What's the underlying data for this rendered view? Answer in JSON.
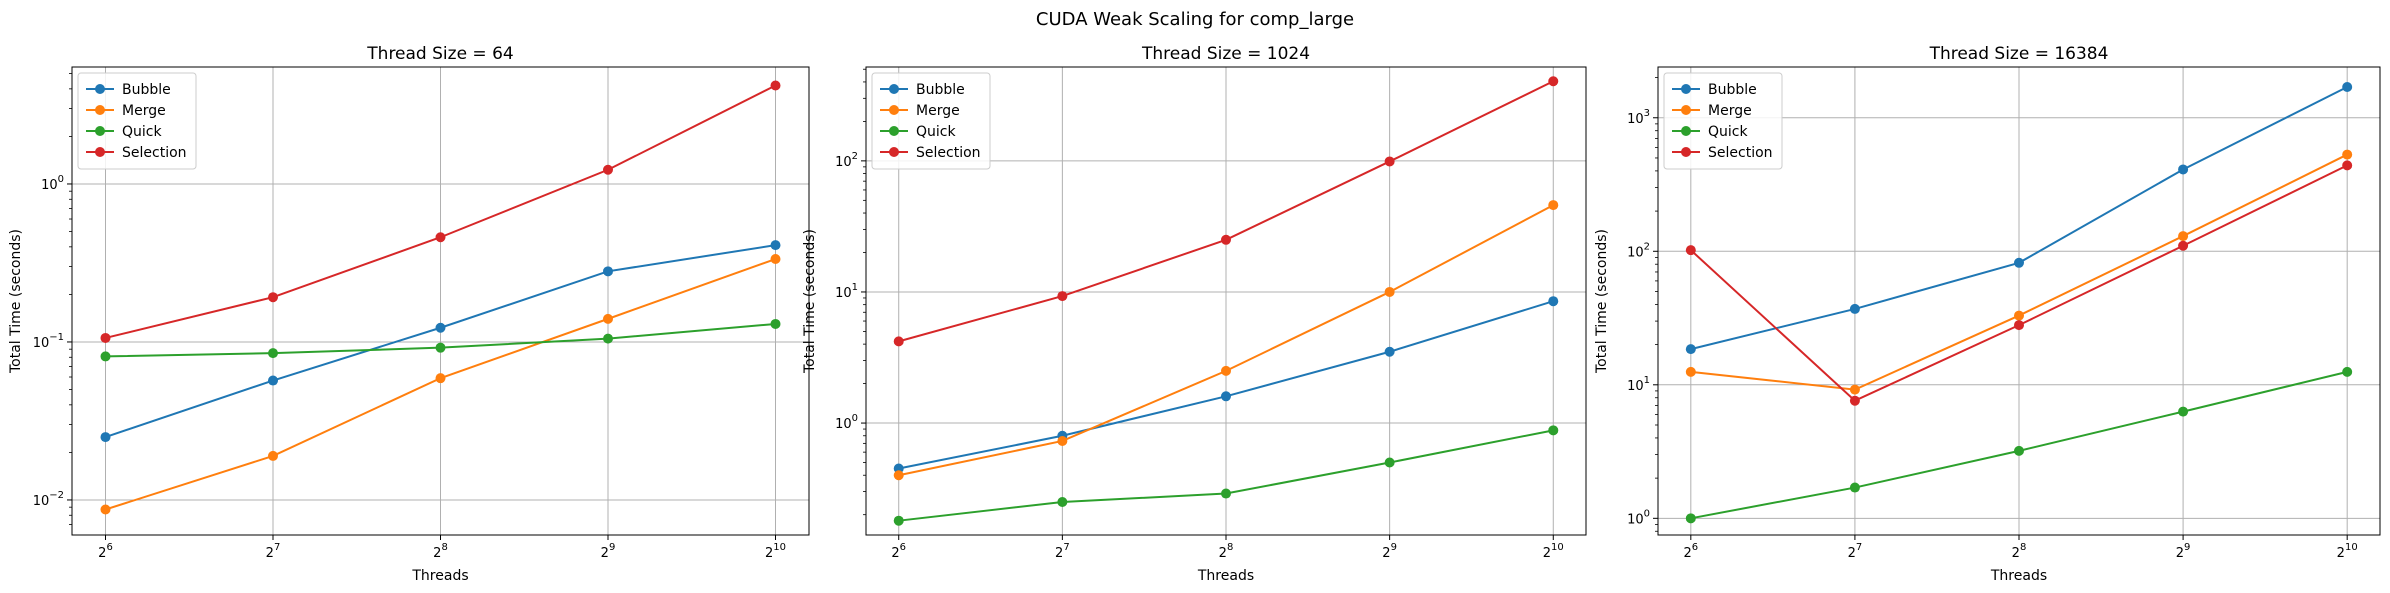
{
  "figure_title": "CUDA Weak Scaling for comp_large",
  "colors": {
    "Bubble": "#1f77b4",
    "Merge": "#ff7f0e",
    "Quick": "#2ca02c",
    "Selection": "#d62728"
  },
  "chart_data": [
    {
      "type": "line",
      "title": "Thread Size = 64",
      "xlabel": "Threads",
      "ylabel": "Total Time (seconds)",
      "xscale": "log2",
      "yscale": "log10",
      "x": [
        64,
        128,
        256,
        512,
        1024
      ],
      "x_ticks": [
        {
          "base": "2",
          "exp": "6"
        },
        {
          "base": "2",
          "exp": "7"
        },
        {
          "base": "2",
          "exp": "8"
        },
        {
          "base": "2",
          "exp": "9"
        },
        {
          "base": "2",
          "exp": "10"
        }
      ],
      "ylim": [
        0.006,
        5.5
      ],
      "y_ticks": [
        {
          "value": 0.01,
          "base": "10",
          "exp": "−2"
        },
        {
          "value": 0.1,
          "base": "10",
          "exp": "−1"
        },
        {
          "value": 1,
          "base": "10",
          "exp": "0"
        }
      ],
      "grid": true,
      "legend_position": "upper-left",
      "series": [
        {
          "name": "Bubble",
          "values": [
            0.025,
            0.057,
            0.123,
            0.28,
            0.41
          ]
        },
        {
          "name": "Merge",
          "values": [
            0.0087,
            0.019,
            0.059,
            0.14,
            0.335
          ]
        },
        {
          "name": "Quick",
          "values": [
            0.081,
            0.085,
            0.092,
            0.105,
            0.13
          ]
        },
        {
          "name": "Selection",
          "values": [
            0.106,
            0.192,
            0.46,
            1.23,
            4.2
          ]
        }
      ]
    },
    {
      "type": "line",
      "title": "Thread Size = 1024",
      "xlabel": "Threads",
      "ylabel": "Total Time (seconds)",
      "xscale": "log2",
      "yscale": "log10",
      "x": [
        64,
        128,
        256,
        512,
        1024
      ],
      "x_ticks": [
        {
          "base": "2",
          "exp": "6"
        },
        {
          "base": "2",
          "exp": "7"
        },
        {
          "base": "2",
          "exp": "8"
        },
        {
          "base": "2",
          "exp": "9"
        },
        {
          "base": "2",
          "exp": "10"
        }
      ],
      "ylim": [
        0.14,
        520
      ],
      "y_ticks": [
        {
          "value": 1,
          "base": "10",
          "exp": "0"
        },
        {
          "value": 10,
          "base": "10",
          "exp": "1"
        },
        {
          "value": 100,
          "base": "10",
          "exp": "2"
        }
      ],
      "grid": true,
      "legend_position": "upper-left",
      "series": [
        {
          "name": "Bubble",
          "values": [
            0.45,
            0.8,
            1.6,
            3.5,
            8.5
          ]
        },
        {
          "name": "Merge",
          "values": [
            0.4,
            0.73,
            2.5,
            10,
            46
          ]
        },
        {
          "name": "Quick",
          "values": [
            0.18,
            0.25,
            0.29,
            0.5,
            0.88
          ]
        },
        {
          "name": "Selection",
          "values": [
            4.2,
            9.3,
            25,
            99,
            405
          ]
        }
      ]
    },
    {
      "type": "line",
      "title": "Thread Size = 16384",
      "xlabel": "Threads",
      "ylabel": "Total Time (seconds)",
      "xscale": "log2",
      "yscale": "log10",
      "x": [
        64,
        128,
        256,
        512,
        1024
      ],
      "x_ticks": [
        {
          "base": "2",
          "exp": "6"
        },
        {
          "base": "2",
          "exp": "7"
        },
        {
          "base": "2",
          "exp": "8"
        },
        {
          "base": "2",
          "exp": "9"
        },
        {
          "base": "2",
          "exp": "10"
        }
      ],
      "ylim": [
        0.75,
        2400
      ],
      "y_ticks": [
        {
          "value": 1,
          "base": "10",
          "exp": "0"
        },
        {
          "value": 10,
          "base": "10",
          "exp": "1"
        },
        {
          "value": 100,
          "base": "10",
          "exp": "2"
        },
        {
          "value": 1000,
          "base": "10",
          "exp": "3"
        }
      ],
      "grid": true,
      "legend_position": "upper-left",
      "series": [
        {
          "name": "Bubble",
          "values": [
            18.5,
            37,
            82,
            410,
            1700
          ]
        },
        {
          "name": "Merge",
          "values": [
            12.5,
            9.2,
            33,
            130,
            530
          ]
        },
        {
          "name": "Quick",
          "values": [
            1.0,
            1.7,
            3.2,
            6.3,
            12.5
          ]
        },
        {
          "name": "Selection",
          "values": [
            102,
            7.6,
            28,
            110,
            440
          ]
        }
      ]
    }
  ]
}
